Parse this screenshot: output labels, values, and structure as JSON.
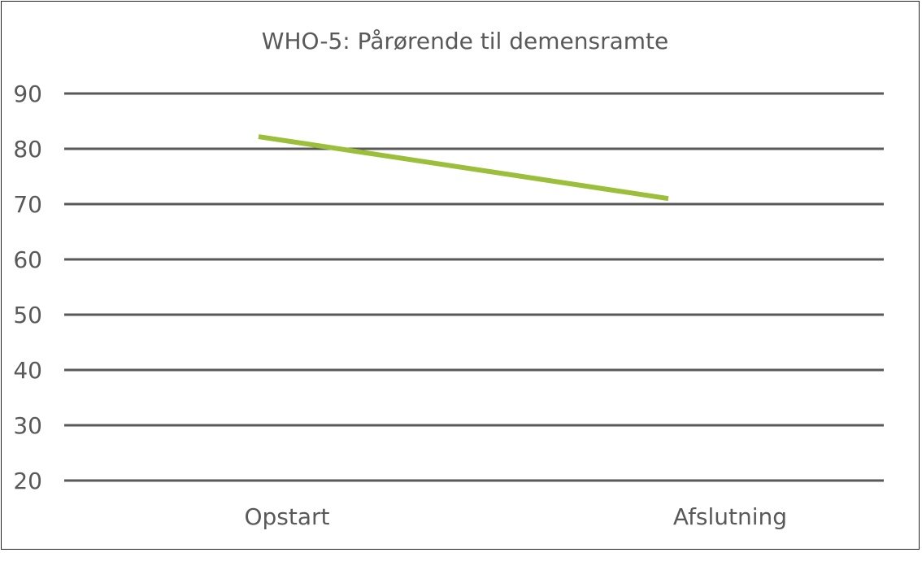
{
  "chart_data": {
    "type": "line",
    "title": "WHO-5: Pårørende til demensramte",
    "categories": [
      "Opstart",
      "Afslutning"
    ],
    "series": [
      {
        "values": [
          82.2,
          71.0
        ],
        "color": "#9BBE3B"
      }
    ],
    "ylim": [
      20,
      90
    ],
    "yticks": [
      "20",
      "30",
      "40",
      "50",
      "60",
      "70",
      "80",
      "90"
    ],
    "grid": true,
    "gridColor": "#595959",
    "textColor": "#595959",
    "xlabel": "",
    "ylabel": ""
  }
}
